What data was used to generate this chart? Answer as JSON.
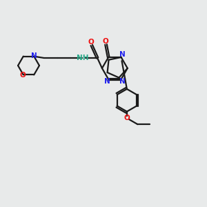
{
  "bg_color": "#e8eaea",
  "bond_color": "#1a1a1a",
  "N_color": "#2020ee",
  "O_color": "#ee1010",
  "H_color": "#2aaa8a",
  "line_width": 1.6,
  "figsize": [
    3.0,
    3.0
  ],
  "dpi": 100,
  "xlim": [
    0,
    10
  ],
  "ylim": [
    0,
    10
  ]
}
